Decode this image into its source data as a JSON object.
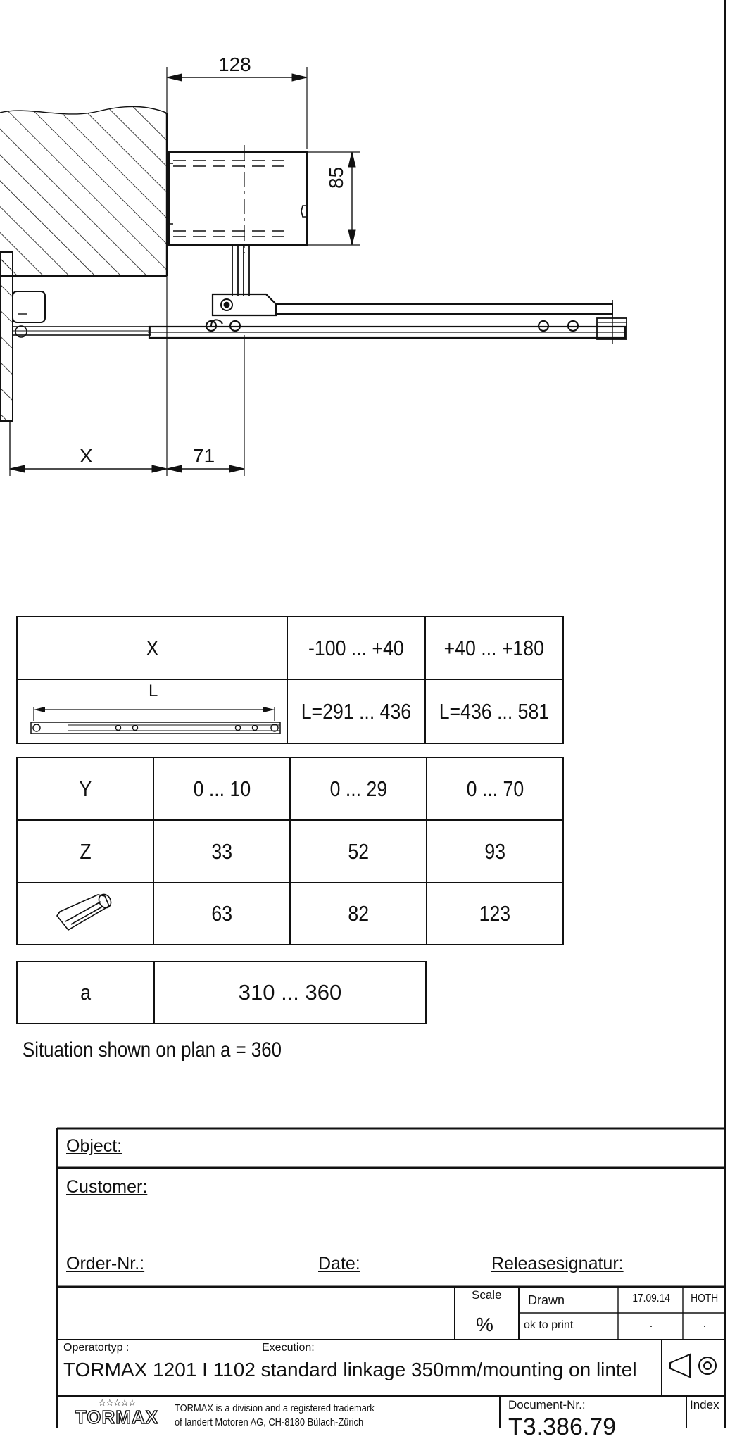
{
  "drawing": {
    "dim_width_top": "128",
    "dim_height_right": "85",
    "dim_x_bottom": "X",
    "dim_71": "71"
  },
  "table_x": {
    "header": "X",
    "col1": "-100 ... +40",
    "col2": "+40 ... +180",
    "linkage_label": "L",
    "l1": "L=291 ... 436",
    "l2": "L=436 ... 581"
  },
  "table_y": {
    "rows": [
      {
        "label": "Y",
        "v1": "0 ... 10",
        "v2": "0 ... 29",
        "v3": "0 ... 70"
      },
      {
        "label": "Z",
        "v1": "33",
        "v2": "52",
        "v3": "93"
      },
      {
        "label": "",
        "v1": "63",
        "v2": "82",
        "v3": "123",
        "icon": "screw-icon"
      }
    ]
  },
  "table_a": {
    "label": "a",
    "value": "310 ... 360"
  },
  "note": "Situation shown on plan a = 360",
  "title_block": {
    "object_label": "Object:",
    "customer_label": "Customer:",
    "order_label": "Order-Nr.:",
    "date_label": "Date:",
    "release_label": "Releasesignatur:",
    "scale_label": "Scale",
    "scale_value": "%",
    "drawn_label": "Drawn",
    "drawn_date": "17.09.14",
    "drawn_by": "HOTH",
    "ok_label": "ok to print",
    "ok_date": ".",
    "ok_by": ".",
    "operatortyp_label": "Operatortyp :",
    "execution_label": "Execution:",
    "description": "TORMAX 1201 I 1102 standard linkage 350mm/mounting on lintel",
    "projection_icon": "projection-symbol-icon",
    "logo_text": "TORMAX",
    "trademark_text": "TORMAX is a division and a registered trademark",
    "trademark_text2": "of landert Motoren AG, CH-8180 Bülach-Zürich",
    "docnr_label": "Document-Nr.:",
    "docnr_value": "T3.386.79",
    "index_label": "Index"
  }
}
